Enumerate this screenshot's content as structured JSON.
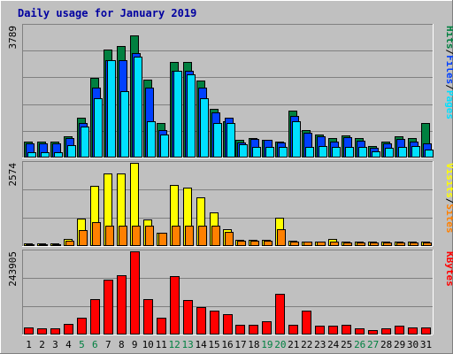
{
  "title": "Daily usage for January 2019",
  "colors": {
    "background": "#c0c0c0",
    "plot_bg": "#c0c0c0",
    "hits": "#008040",
    "files": "#0040ff",
    "pages": "#00e0ff",
    "visits": "#ffff00",
    "sites": "#ff8000",
    "kbytes": "#ff0000",
    "weekend_label": "#008040",
    "title": "#0000a0"
  },
  "chart_data": [
    {
      "type": "bar",
      "title": "Daily usage for January 2019",
      "ymax_label": "3789",
      "ylim": [
        0,
        3789
      ],
      "right_labels": [
        {
          "text": "Pages",
          "color": "#00e0ff"
        },
        {
          "text": "/",
          "color": "#000000"
        },
        {
          "text": "Files",
          "color": "#0040ff"
        },
        {
          "text": "/",
          "color": "#000000"
        },
        {
          "text": "Hits",
          "color": "#008040"
        }
      ],
      "categories": [
        "1",
        "2",
        "3",
        "4",
        "5",
        "6",
        "7",
        "8",
        "9",
        "10",
        "11",
        "12",
        "13",
        "14",
        "15",
        "16",
        "17",
        "18",
        "19",
        "20",
        "21",
        "22",
        "23",
        "24",
        "25",
        "26",
        "27",
        "28",
        "29",
        "30",
        "31"
      ],
      "weekend_days": [
        "5",
        "6",
        "12",
        "13",
        "19",
        "20",
        "26",
        "27"
      ],
      "series": [
        {
          "name": "Hits",
          "color": "#008040",
          "values": [
            450,
            450,
            450,
            620,
            1150,
            2300,
            3100,
            3200,
            3500,
            2250,
            1000,
            2750,
            2750,
            2200,
            1400,
            1050,
            500,
            550,
            520,
            470,
            1350,
            800,
            650,
            550,
            640,
            550,
            330,
            450,
            600,
            550,
            1000
          ]
        },
        {
          "name": "Files",
          "color": "#0040ff",
          "values": [
            400,
            400,
            400,
            550,
            1000,
            2000,
            2800,
            2800,
            3000,
            2000,
            800,
            2500,
            2500,
            2000,
            1300,
            1150,
            430,
            530,
            500,
            420,
            1200,
            700,
            600,
            450,
            580,
            480,
            270,
            400,
            530,
            470,
            400
          ]
        },
        {
          "name": "Pages",
          "color": "#00e0ff",
          "values": [
            150,
            150,
            150,
            350,
            900,
            1700,
            2800,
            1900,
            2900,
            1050,
            650,
            2500,
            2400,
            1700,
            1000,
            1000,
            370,
            300,
            300,
            300,
            1050,
            300,
            320,
            300,
            300,
            300,
            180,
            270,
            300,
            320,
            220
          ]
        }
      ]
    },
    {
      "type": "bar",
      "ymax_label": "2574",
      "ylim": [
        0,
        2574
      ],
      "right_labels": [
        {
          "text": "Sites",
          "color": "#ff8000"
        },
        {
          "text": "/",
          "color": "#000000"
        },
        {
          "text": "Visits",
          "color": "#ffff00"
        }
      ],
      "categories": [
        "1",
        "2",
        "3",
        "4",
        "5",
        "6",
        "7",
        "8",
        "9",
        "10",
        "11",
        "12",
        "13",
        "14",
        "15",
        "16",
        "17",
        "18",
        "19",
        "20",
        "21",
        "22",
        "23",
        "24",
        "25",
        "26",
        "27",
        "28",
        "29",
        "30",
        "31"
      ],
      "series": [
        {
          "name": "Visits",
          "color": "#ffff00",
          "values": [
            70,
            70,
            70,
            220,
            850,
            1850,
            2250,
            2250,
            2574,
            820,
            400,
            1900,
            1800,
            1500,
            1050,
            530,
            190,
            190,
            190,
            880,
            160,
            150,
            150,
            210,
            140,
            130,
            130,
            130,
            130,
            130,
            130
          ]
        },
        {
          "name": "Sites",
          "color": "#ff8000",
          "values": [
            60,
            60,
            60,
            170,
            500,
            750,
            640,
            640,
            640,
            640,
            400,
            640,
            640,
            640,
            640,
            430,
            160,
            160,
            160,
            520,
            140,
            130,
            130,
            150,
            120,
            110,
            110,
            110,
            110,
            110,
            110
          ]
        }
      ]
    },
    {
      "type": "bar",
      "ymax_label": "243905",
      "ylim": [
        0,
        243905
      ],
      "right_labels": [
        {
          "text": "KBytes",
          "color": "#ff0000"
        }
      ],
      "categories": [
        "1",
        "2",
        "3",
        "4",
        "5",
        "6",
        "7",
        "8",
        "9",
        "10",
        "11",
        "12",
        "13",
        "14",
        "15",
        "16",
        "17",
        "18",
        "19",
        "20",
        "21",
        "22",
        "23",
        "24",
        "25",
        "26",
        "27",
        "28",
        "29",
        "30",
        "31"
      ],
      "series": [
        {
          "name": "KBytes",
          "color": "#ff0000",
          "values": [
            22000,
            17000,
            17000,
            30000,
            50000,
            105000,
            160000,
            175000,
            243905,
            105000,
            50000,
            170000,
            100000,
            80000,
            70000,
            60000,
            28000,
            28000,
            40000,
            120000,
            28000,
            70000,
            25000,
            25000,
            28000,
            17000,
            14000,
            17000,
            25000,
            22000,
            22000
          ]
        }
      ]
    }
  ]
}
